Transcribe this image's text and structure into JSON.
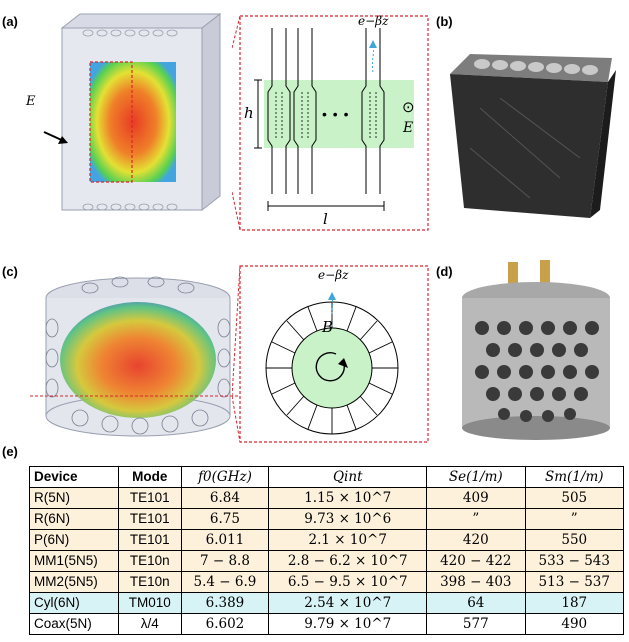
{
  "labels": {
    "a": "(a)",
    "b": "(b)",
    "c": "(c)",
    "d": "(d)",
    "e": "(e)"
  },
  "panel_a": {
    "field_label": "E",
    "decay_label": "e−βz",
    "height_label": "h",
    "length_label": "l",
    "dots": "• • •",
    "out_of_page": "⊙",
    "e_field_side": "E"
  },
  "panel_c": {
    "decay_label": "e−βz",
    "b_field_label": "B"
  },
  "table": {
    "headers": [
      "Device",
      "Mode",
      "f0(GHz)",
      "Qint",
      "Se(1/m)",
      "Sm(1/m)"
    ],
    "rows": [
      {
        "device": "R(5N)",
        "mode": "TE101",
        "f0": "6.84",
        "q": "1.15 × 10^7",
        "se": "409",
        "sm": "505"
      },
      {
        "device": "R(6N)",
        "mode": "TE101",
        "f0": "6.75",
        "q": "9.73 × 10^6",
        "se": "”",
        "sm": "”"
      },
      {
        "device": "P(6N)",
        "mode": "TE101",
        "f0": "6.011",
        "q": "2.1 × 10^7",
        "se": "420",
        "sm": "550"
      },
      {
        "device": "MM1(5N5)",
        "mode": "TE10n",
        "f0": "7 − 8.8",
        "q": "2.8 − 6.2 × 10^7",
        "se": "420 − 422",
        "sm": "533 − 543"
      },
      {
        "device": "MM2(5N5)",
        "mode": "TE10n",
        "f0": "5.4 − 6.9",
        "q": "6.5 − 9.5 × 10^7",
        "se": "398 − 403",
        "sm": "513 − 537"
      },
      {
        "device": "Cyl(6N)",
        "mode": "TM010",
        "f0": "6.389",
        "q": "2.54 × 10^7",
        "se": "64",
        "sm": "187"
      },
      {
        "device": "Coax(5N)",
        "mode": "λ/4",
        "f0": "6.602",
        "q": "9.79 × 10^7",
        "se": "577",
        "sm": "490"
      }
    ]
  },
  "colors": {
    "dashed_red": "#d9262c",
    "green_region": "#c9f2c9",
    "warm_row": "#fdf1dc",
    "cyan_row": "#d8f3f6",
    "arrow_cyan": "#3fa7d6"
  }
}
